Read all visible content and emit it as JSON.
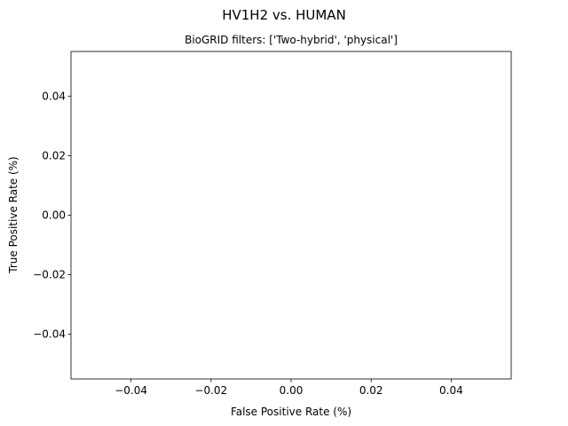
{
  "chart_data": {
    "type": "line",
    "title": "HV1H2 vs. HUMAN",
    "subtitle": "BioGRID filters: ['Two-hybrid', 'physical']",
    "xlabel": "False Positive Rate (%)",
    "ylabel": "True Positive Rate (%)",
    "xlim": [
      -0.055,
      0.055
    ],
    "ylim": [
      -0.055,
      0.055
    ],
    "x_ticks": [
      -0.04,
      -0.02,
      0.0,
      0.02,
      0.04
    ],
    "x_tick_labels": [
      "−0.04",
      "−0.02",
      "0.00",
      "0.02",
      "0.04"
    ],
    "y_ticks": [
      -0.04,
      -0.02,
      0.0,
      0.02,
      0.04
    ],
    "y_tick_labels": [
      "−0.04",
      "−0.02",
      "0.00",
      "0.02",
      "0.04"
    ],
    "grid": false,
    "series": [
      {
        "x": [],
        "y": []
      }
    ]
  }
}
